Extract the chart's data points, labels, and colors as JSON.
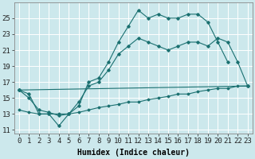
{
  "xlabel": "Humidex (Indice chaleur)",
  "background_color": "#cce8ec",
  "grid_color": "#ffffff",
  "line_color": "#1a7070",
  "xlim": [
    -0.5,
    23.5
  ],
  "ylim": [
    10.5,
    27.0
  ],
  "xticks": [
    0,
    1,
    2,
    3,
    4,
    5,
    6,
    7,
    8,
    9,
    10,
    11,
    12,
    13,
    14,
    15,
    16,
    17,
    18,
    19,
    20,
    21,
    22,
    23
  ],
  "yticks": [
    11,
    13,
    15,
    17,
    19,
    21,
    23,
    25
  ],
  "series1_x": [
    0,
    1,
    2,
    3,
    4,
    5,
    6,
    7,
    8,
    9,
    10,
    11,
    12,
    13,
    14,
    15,
    16,
    17,
    18,
    19,
    20,
    21
  ],
  "series1_y": [
    16.0,
    15.5,
    13.0,
    13.0,
    11.5,
    13.0,
    14.0,
    17.0,
    17.5,
    19.5,
    22.0,
    24.0,
    26.0,
    25.0,
    25.5,
    25.0,
    25.0,
    25.5,
    25.5,
    24.5,
    22.0,
    19.5
  ],
  "series2_x": [
    0,
    23
  ],
  "series2_y": [
    16.0,
    16.5
  ],
  "series3_x": [
    0,
    1,
    2,
    3,
    4,
    5,
    6,
    7,
    8,
    9,
    10,
    11,
    12,
    13,
    14,
    15,
    16,
    17,
    18,
    19,
    20,
    21,
    22,
    23
  ],
  "series3_y": [
    13.5,
    13.2,
    13.0,
    13.0,
    13.0,
    13.0,
    13.2,
    13.5,
    13.8,
    14.0,
    14.2,
    14.5,
    14.5,
    14.8,
    15.0,
    15.2,
    15.5,
    15.5,
    15.8,
    16.0,
    16.2,
    16.2,
    16.5,
    16.5
  ],
  "series4_x": [
    0,
    1,
    2,
    3,
    4,
    5,
    6,
    7,
    8,
    9,
    10,
    11,
    12,
    13,
    14,
    15,
    16,
    17,
    18,
    19,
    20,
    21,
    22,
    23
  ],
  "series4_y": [
    16.0,
    15.0,
    13.5,
    13.2,
    12.8,
    13.0,
    14.5,
    16.5,
    17.0,
    18.5,
    20.5,
    21.5,
    22.5,
    22.0,
    21.5,
    21.0,
    21.5,
    22.0,
    22.0,
    21.5,
    22.5,
    22.0,
    19.5,
    16.5
  ],
  "font_size_xlabel": 7,
  "font_size_ticks": 6.5
}
